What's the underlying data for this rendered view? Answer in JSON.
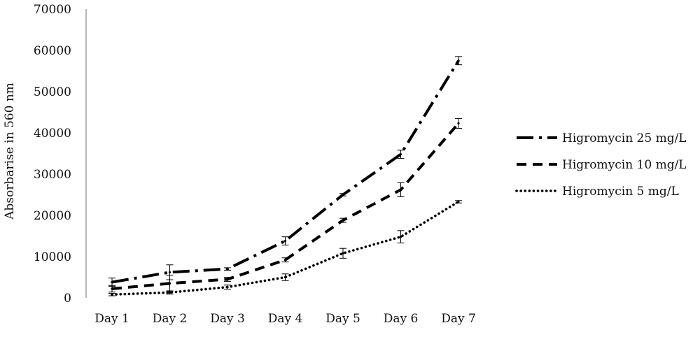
{
  "chart_data": {
    "type": "line",
    "title": "",
    "xlabel": "",
    "ylabel": "Absorbarise in 560 nm",
    "categories": [
      "Day 1",
      "Day 2",
      "Day 3",
      "Day 4",
      "Day 5",
      "Day 6",
      "Day 7"
    ],
    "y_ticks": [
      "0",
      "10000",
      "20000",
      "30000",
      "40000",
      "50000",
      "60000",
      "70000"
    ],
    "ylim": [
      0,
      70000
    ],
    "grid": false,
    "legend_position": "right",
    "series": [
      {
        "name": "Higromycin 25  mg/L",
        "style": "dash-dot",
        "values": [
          3800,
          6200,
          7000,
          13800,
          25000,
          34800,
          57500
        ],
        "errors": [
          1000,
          1800,
          300,
          1000,
          300,
          1000,
          1000
        ]
      },
      {
        "name": "Higromycin 10  mg/L",
        "style": "dashed",
        "values": [
          2200,
          3500,
          4500,
          9200,
          18800,
          26200,
          42300
        ],
        "errors": [
          800,
          2000,
          500,
          500,
          500,
          1700,
          1200
        ]
      },
      {
        "name": "Higromycin 5  mg/L",
        "style": "dotted",
        "values": [
          800,
          1300,
          2600,
          5000,
          10800,
          14800,
          23300
        ],
        "errors": [
          300,
          400,
          500,
          800,
          1200,
          1500,
          300
        ]
      }
    ]
  }
}
